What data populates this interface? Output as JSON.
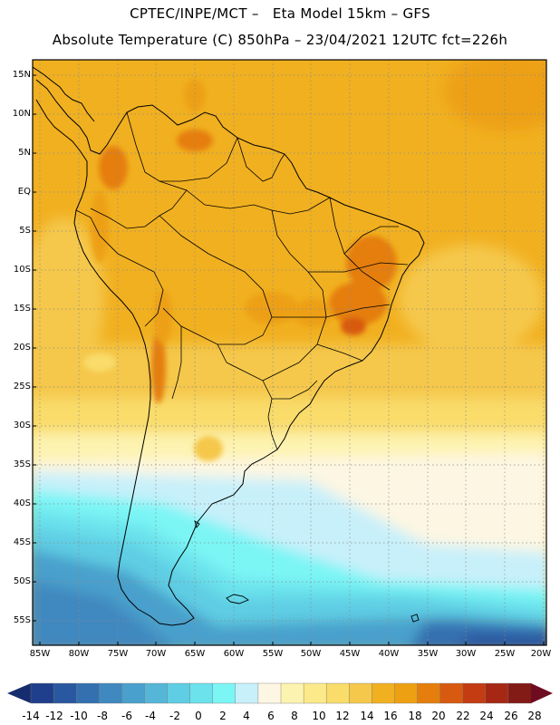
{
  "header": {
    "line1": "CPTEC/INPE/MCT –   Eta Model 15km – GFS",
    "line2": "Absolute Temperature (C) 850hPa – 23/04/2021 12UTC fct=226h"
  },
  "map": {
    "lat_labels": [
      "15N",
      "10N",
      "5N",
      "EQ",
      "5S",
      "10S",
      "15S",
      "20S",
      "25S",
      "30S",
      "35S",
      "40S",
      "45S",
      "50S",
      "55S"
    ],
    "lon_labels": [
      "85W",
      "80W",
      "75W",
      "70W",
      "65W",
      "60W",
      "55W",
      "50W",
      "45W",
      "40W",
      "35W",
      "30W",
      "25W",
      "20W"
    ]
  },
  "colorbar": {
    "labels": [
      "-14",
      "-12",
      "-10",
      "-8",
      "-6",
      "-4",
      "-2",
      "0",
      "2",
      "4",
      "6",
      "8",
      "10",
      "12",
      "14",
      "16",
      "18",
      "20",
      "22",
      "24",
      "26",
      "28"
    ],
    "colors": [
      "#1f3e8c",
      "#2a58a0",
      "#3470b0",
      "#3f88c0",
      "#4aa0cc",
      "#55b6d8",
      "#5fcde3",
      "#6be2ec",
      "#7cf5f5",
      "#c8f0fa",
      "#fdf6e2",
      "#fdf3b0",
      "#fce98a",
      "#f9dc6a",
      "#f5c84c",
      "#f1b020",
      "#eda012",
      "#e57e0c",
      "#d85a10",
      "#c43c12",
      "#a62814",
      "#821a16"
    ],
    "low_arrow_color": "#152c6e",
    "high_arrow_color": "#6e0c22"
  }
}
